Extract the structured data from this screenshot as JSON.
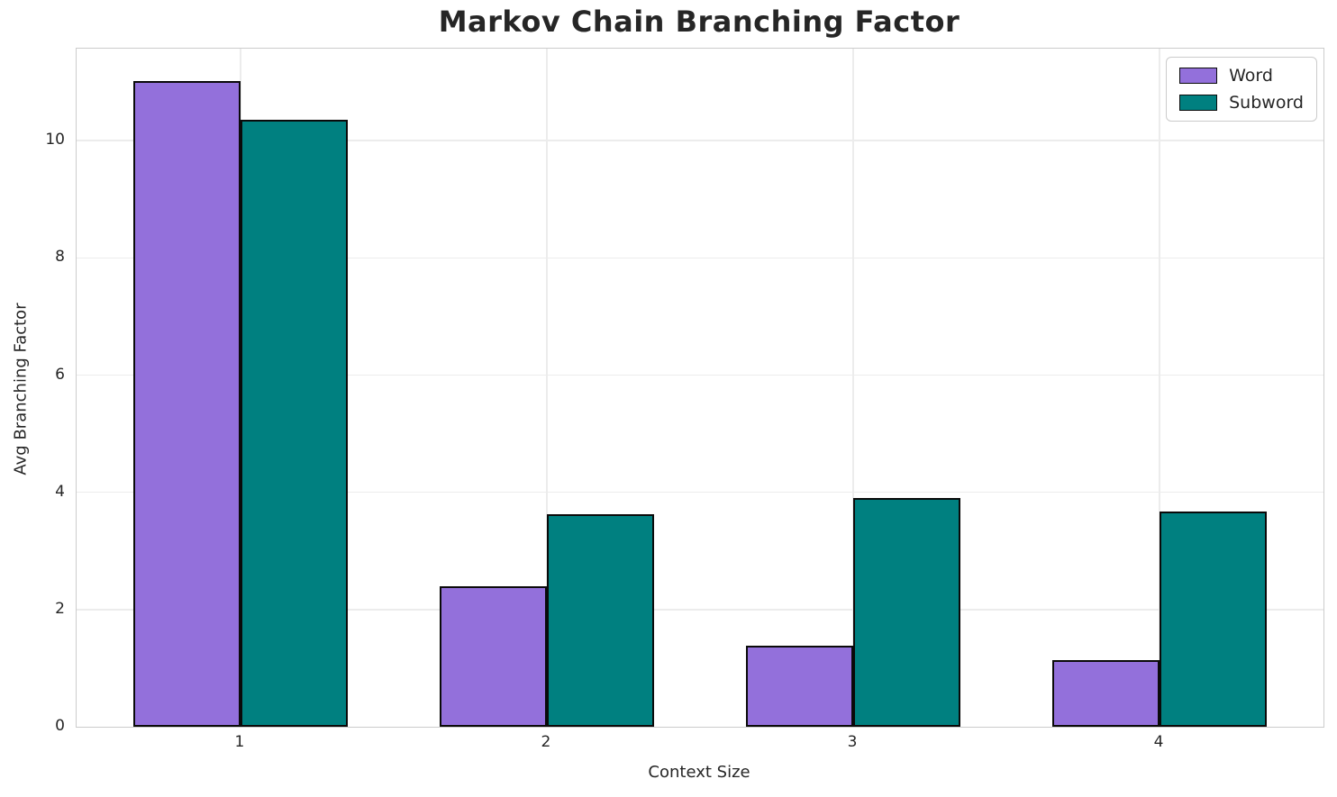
{
  "chart_data": {
    "type": "bar",
    "title": "Markov Chain Branching Factor",
    "xlabel": "Context Size",
    "ylabel": "Avg Branching Factor",
    "categories": [
      "1",
      "2",
      "3",
      "4"
    ],
    "series": [
      {
        "name": "Word",
        "color": "#9370DB",
        "values": [
          11.02,
          2.4,
          1.39,
          1.13
        ]
      },
      {
        "name": "Subword",
        "color": "#008080",
        "values": [
          10.35,
          3.63,
          3.9,
          3.67
        ]
      }
    ],
    "ylim": [
      0,
      11.57
    ],
    "yticks": [
      0,
      2,
      4,
      6,
      8,
      10
    ],
    "bar_width": 0.35,
    "bar_edge_color": "#0a0a0a",
    "grid": true,
    "grid_color": "#ececec",
    "spine_color": "#cccccc",
    "text_color": "#262626",
    "background_color": "#ffffff",
    "legend_position": "upper right"
  }
}
